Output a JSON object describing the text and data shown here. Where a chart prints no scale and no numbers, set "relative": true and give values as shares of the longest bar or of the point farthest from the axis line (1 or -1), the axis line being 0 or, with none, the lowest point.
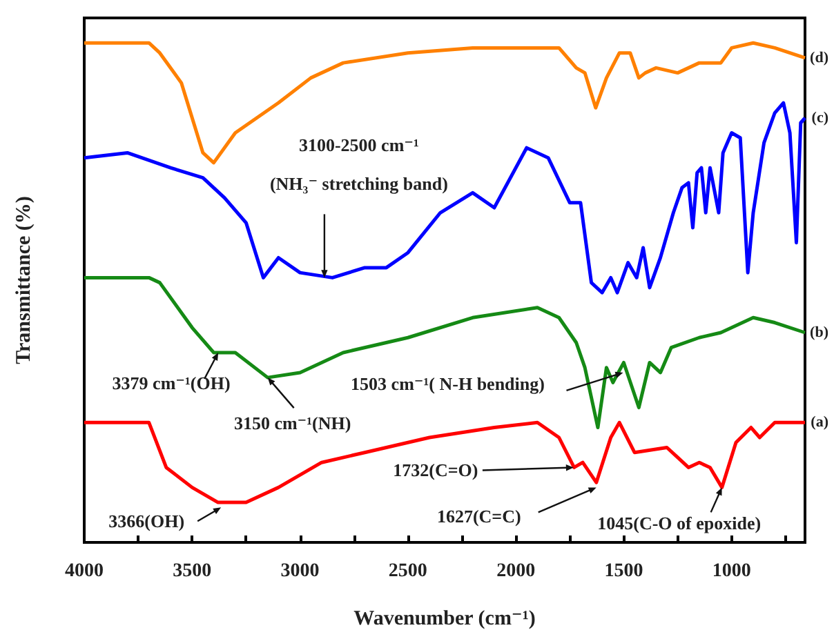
{
  "chart_data": {
    "type": "line",
    "relative": true,
    "xlabel": "Wavenumber (cm⁻¹)",
    "ylabel": "Transmittance (%)",
    "xlim": [
      4000,
      660
    ],
    "xticks": [
      4000,
      {
        "value": 3750,
        "label": null
      },
      3500,
      {
        "value": 3250,
        "label": null
      },
      3000,
      {
        "value": 2750,
        "label": null
      },
      2500,
      {
        "value": 2250,
        "label": null
      },
      2000,
      {
        "value": 1750,
        "label": null
      },
      1500,
      {
        "value": 1250,
        "label": null
      },
      1000,
      {
        "value": 750,
        "label": null
      }
    ],
    "grid": false,
    "legend": false,
    "marker": "none",
    "line_style": "solid",
    "series": [
      {
        "name": "(a)",
        "color": "#ff0000",
        "x": [
          4000,
          3700,
          3620,
          3500,
          3380,
          3250,
          3100,
          2900,
          2700,
          2400,
          2100,
          1900,
          1800,
          1730,
          1690,
          1627,
          1560,
          1520,
          1450,
          1300,
          1250,
          1200,
          1150,
          1100,
          1045,
          980,
          910,
          870,
          800,
          660
        ],
        "values": [
          0.24,
          0.24,
          0.15,
          0.11,
          0.08,
          0.08,
          0.11,
          0.16,
          0.18,
          0.21,
          0.23,
          0.24,
          0.21,
          0.15,
          0.16,
          0.12,
          0.21,
          0.24,
          0.18,
          0.19,
          0.17,
          0.15,
          0.16,
          0.15,
          0.11,
          0.2,
          0.23,
          0.21,
          0.24,
          0.24
        ]
      },
      {
        "name": "(b)",
        "color": "#158a15",
        "x": [
          4000,
          3700,
          3650,
          3500,
          3400,
          3300,
          3150,
          3000,
          2800,
          2500,
          2200,
          1900,
          1800,
          1720,
          1680,
          1620,
          1580,
          1550,
          1500,
          1430,
          1380,
          1330,
          1280,
          1150,
          1050,
          1000,
          900,
          800,
          660
        ],
        "values": [
          0.53,
          0.53,
          0.52,
          0.43,
          0.38,
          0.38,
          0.33,
          0.34,
          0.38,
          0.41,
          0.45,
          0.47,
          0.45,
          0.4,
          0.35,
          0.23,
          0.35,
          0.32,
          0.36,
          0.27,
          0.36,
          0.34,
          0.39,
          0.41,
          0.42,
          0.43,
          0.45,
          0.44,
          0.42
        ]
      },
      {
        "name": "(c)",
        "color": "#0000ff",
        "x": [
          4000,
          3800,
          3600,
          3450,
          3350,
          3250,
          3170,
          3100,
          3000,
          2850,
          2700,
          2600,
          2500,
          2350,
          2200,
          2100,
          1950,
          1850,
          1750,
          1700,
          1650,
          1600,
          1560,
          1530,
          1480,
          1440,
          1410,
          1380,
          1330,
          1270,
          1230,
          1200,
          1180,
          1160,
          1140,
          1120,
          1100,
          1060,
          1040,
          1000,
          960,
          925,
          900,
          850,
          800,
          760,
          730,
          700,
          680,
          660
        ],
        "values": [
          0.77,
          0.78,
          0.75,
          0.73,
          0.69,
          0.64,
          0.53,
          0.57,
          0.54,
          0.53,
          0.55,
          0.55,
          0.58,
          0.66,
          0.7,
          0.67,
          0.79,
          0.77,
          0.68,
          0.68,
          0.52,
          0.5,
          0.53,
          0.5,
          0.56,
          0.53,
          0.59,
          0.51,
          0.57,
          0.66,
          0.71,
          0.72,
          0.63,
          0.74,
          0.75,
          0.66,
          0.75,
          0.66,
          0.78,
          0.82,
          0.81,
          0.54,
          0.66,
          0.8,
          0.86,
          0.88,
          0.82,
          0.6,
          0.84,
          0.85
        ]
      },
      {
        "name": "(d)",
        "color": "#ff8000",
        "x": [
          4000,
          3700,
          3650,
          3550,
          3450,
          3400,
          3300,
          3200,
          3100,
          2950,
          2800,
          2500,
          2200,
          1900,
          1800,
          1720,
          1680,
          1630,
          1580,
          1520,
          1470,
          1430,
          1400,
          1350,
          1250,
          1150,
          1050,
          1000,
          900,
          800,
          660
        ],
        "values": [
          1.0,
          1.0,
          0.98,
          0.92,
          0.78,
          0.76,
          0.82,
          0.85,
          0.88,
          0.93,
          0.96,
          0.98,
          0.99,
          0.99,
          0.99,
          0.95,
          0.94,
          0.87,
          0.93,
          0.98,
          0.98,
          0.93,
          0.94,
          0.95,
          0.94,
          0.96,
          0.96,
          0.99,
          1.0,
          0.99,
          0.97
        ]
      }
    ],
    "annotations": [
      {
        "text": "3100-2500 cm⁻¹\n(NH₃⁻ stretching band)",
        "x": 2887,
        "y": 0.53
      },
      {
        "text": "3379 cm⁻¹(OH)",
        "x": 3379,
        "y": 0.38
      },
      {
        "text": "3150 cm⁻¹(NH)",
        "x": 3150,
        "y": 0.33
      },
      {
        "text": "1503 cm⁻¹( N-H bending)",
        "x": 1503,
        "y": 0.34
      },
      {
        "text": "1732(C=O)",
        "x": 1732,
        "y": 0.15
      },
      {
        "text": "1627(C=C)",
        "x": 1627,
        "y": 0.11
      },
      {
        "text": "1045(C-O of epoxide)",
        "x": 1045,
        "y": 0.11
      },
      {
        "text": "3366(OH)",
        "x": 3366,
        "y": 0.07
      }
    ]
  }
}
